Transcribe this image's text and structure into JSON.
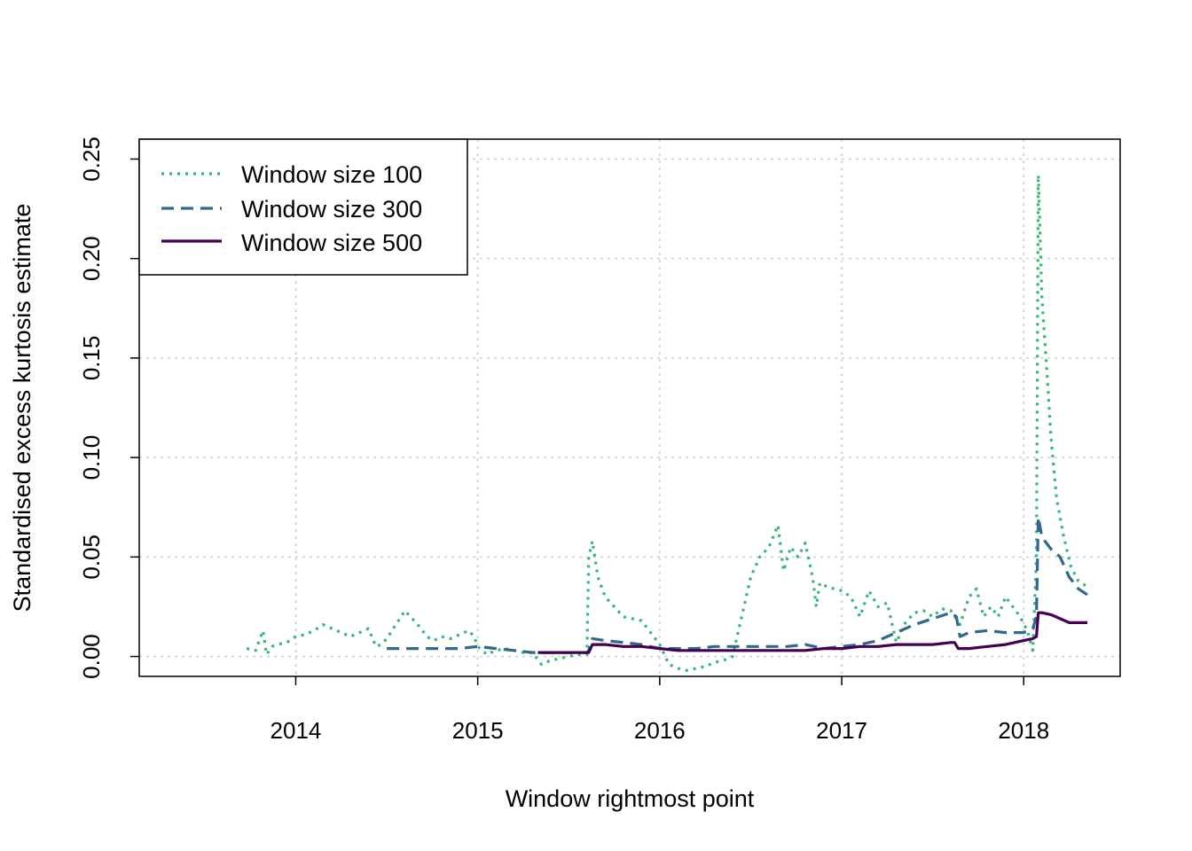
{
  "colors": {
    "w100": "#35b779",
    "w300": "#31688e",
    "w500": "#440154",
    "grid": "#cfcfcf",
    "axis": "#000000"
  },
  "chart_data": {
    "type": "line",
    "title": "",
    "xlabel": "Window rightmost point",
    "ylabel": "Standardised excess kurtosis estimate",
    "xlim": [
      2013.14,
      2018.53
    ],
    "ylim": [
      -0.01,
      0.26
    ],
    "x_ticks": [
      2014,
      2015,
      2016,
      2017,
      2018
    ],
    "x_tick_labels": [
      "2014",
      "2015",
      "2016",
      "2017",
      "2018"
    ],
    "y_ticks": [
      0.0,
      0.05,
      0.1,
      0.15,
      0.2,
      0.25
    ],
    "y_tick_labels": [
      "0.00",
      "0.05",
      "0.10",
      "0.15",
      "0.20",
      "0.25"
    ],
    "grid": true,
    "legend_position": "top-left",
    "series": [
      {
        "name": "Window size 100",
        "key": "w100",
        "line_style": "dotted",
        "x": [
          2013.73,
          2013.78,
          2013.82,
          2013.84,
          2013.87,
          2013.9,
          2013.95,
          2014.0,
          2014.05,
          2014.1,
          2014.15,
          2014.2,
          2014.25,
          2014.3,
          2014.35,
          2014.4,
          2014.44,
          2014.47,
          2014.5,
          2014.55,
          2014.6,
          2014.64,
          2014.68,
          2014.72,
          2014.76,
          2014.8,
          2014.85,
          2014.9,
          2014.95,
          2014.98,
          2015.0,
          2015.05,
          2015.1,
          2015.15,
          2015.2,
          2015.25,
          2015.3,
          2015.35,
          2015.4,
          2015.45,
          2015.5,
          2015.55,
          2015.6,
          2015.61,
          2015.63,
          2015.66,
          2015.7,
          2015.75,
          2015.8,
          2015.85,
          2015.9,
          2015.95,
          2016.0,
          2016.05,
          2016.1,
          2016.15,
          2016.2,
          2016.25,
          2016.3,
          2016.35,
          2016.4,
          2016.45,
          2016.5,
          2016.55,
          2016.6,
          2016.65,
          2016.68,
          2016.72,
          2016.76,
          2016.8,
          2016.84,
          2016.86,
          2016.88,
          2016.92,
          2016.96,
          2017.0,
          2017.05,
          2017.1,
          2017.15,
          2017.2,
          2017.25,
          2017.3,
          2017.35,
          2017.4,
          2017.45,
          2017.5,
          2017.55,
          2017.6,
          2017.65,
          2017.7,
          2017.74,
          2017.78,
          2017.82,
          2017.86,
          2017.9,
          2017.94,
          2017.98,
          2018.02,
          2018.05,
          2018.07,
          2018.08,
          2018.1,
          2018.13,
          2018.15,
          2018.18,
          2018.22,
          2018.26,
          2018.3,
          2018.35
        ],
        "y": [
          0.004,
          0.003,
          0.013,
          0.001,
          0.005,
          0.006,
          0.007,
          0.01,
          0.011,
          0.013,
          0.016,
          0.014,
          0.012,
          0.01,
          0.012,
          0.014,
          0.005,
          0.006,
          0.009,
          0.016,
          0.023,
          0.019,
          0.015,
          0.01,
          0.008,
          0.01,
          0.009,
          0.011,
          0.013,
          0.01,
          0.005,
          0.001,
          0.003,
          0.004,
          0.003,
          0.002,
          0.002,
          -0.004,
          -0.002,
          -0.001,
          0.0,
          0.001,
          0.001,
          0.05,
          0.058,
          0.04,
          0.03,
          0.025,
          0.02,
          0.019,
          0.018,
          0.012,
          0.006,
          -0.004,
          -0.006,
          -0.007,
          -0.006,
          -0.005,
          -0.003,
          -0.002,
          0.0,
          0.02,
          0.04,
          0.05,
          0.055,
          0.066,
          0.043,
          0.055,
          0.05,
          0.057,
          0.04,
          0.025,
          0.037,
          0.035,
          0.034,
          0.033,
          0.03,
          0.02,
          0.033,
          0.025,
          0.027,
          0.007,
          0.017,
          0.022,
          0.023,
          0.02,
          0.024,
          0.023,
          0.016,
          0.03,
          0.034,
          0.02,
          0.025,
          0.02,
          0.03,
          0.025,
          0.02,
          0.013,
          0.003,
          0.05,
          0.242,
          0.18,
          0.14,
          0.11,
          0.08,
          0.06,
          0.045,
          0.038,
          0.035
        ]
      },
      {
        "name": "Window size 300",
        "key": "w300",
        "line_style": "dashed",
        "x": [
          2014.5,
          2014.6,
          2014.7,
          2014.8,
          2014.9,
          2015.0,
          2015.1,
          2015.2,
          2015.3,
          2015.4,
          2015.5,
          2015.6,
          2015.61,
          2015.63,
          2015.7,
          2015.8,
          2015.9,
          2016.0,
          2016.1,
          2016.2,
          2016.3,
          2016.4,
          2016.5,
          2016.6,
          2016.7,
          2016.8,
          2016.9,
          2017.0,
          2017.1,
          2017.2,
          2017.3,
          2017.4,
          2017.5,
          2017.6,
          2017.63,
          2017.65,
          2017.7,
          2017.8,
          2017.9,
          2018.0,
          2018.05,
          2018.07,
          2018.08,
          2018.1,
          2018.15,
          2018.2,
          2018.25,
          2018.3,
          2018.35
        ],
        "y": [
          0.004,
          0.004,
          0.004,
          0.004,
          0.004,
          0.005,
          0.004,
          0.003,
          0.002,
          0.002,
          0.002,
          0.002,
          0.003,
          0.009,
          0.008,
          0.007,
          0.006,
          0.004,
          0.004,
          0.004,
          0.005,
          0.005,
          0.005,
          0.005,
          0.005,
          0.006,
          0.004,
          0.005,
          0.006,
          0.008,
          0.012,
          0.016,
          0.019,
          0.022,
          0.02,
          0.01,
          0.012,
          0.013,
          0.012,
          0.012,
          0.014,
          0.02,
          0.07,
          0.06,
          0.054,
          0.05,
          0.04,
          0.034,
          0.031
        ]
      },
      {
        "name": "Window size 500",
        "key": "w500",
        "line_style": "solid",
        "x": [
          2015.33,
          2015.4,
          2015.5,
          2015.6,
          2015.61,
          2015.63,
          2015.7,
          2015.8,
          2015.9,
          2016.0,
          2016.1,
          2016.2,
          2016.3,
          2016.4,
          2016.5,
          2016.6,
          2016.7,
          2016.8,
          2016.9,
          2017.0,
          2017.1,
          2017.2,
          2017.3,
          2017.4,
          2017.5,
          2017.6,
          2017.62,
          2017.64,
          2017.7,
          2017.8,
          2017.9,
          2018.0,
          2018.05,
          2018.07,
          2018.08,
          2018.1,
          2018.15,
          2018.2,
          2018.25,
          2018.3,
          2018.35
        ],
        "y": [
          0.002,
          0.002,
          0.002,
          0.002,
          0.002,
          0.006,
          0.006,
          0.005,
          0.005,
          0.004,
          0.003,
          0.003,
          0.003,
          0.003,
          0.003,
          0.003,
          0.003,
          0.003,
          0.004,
          0.004,
          0.005,
          0.005,
          0.006,
          0.006,
          0.006,
          0.007,
          0.007,
          0.004,
          0.004,
          0.005,
          0.006,
          0.008,
          0.009,
          0.01,
          0.022,
          0.022,
          0.021,
          0.019,
          0.017,
          0.017,
          0.017
        ]
      }
    ]
  }
}
